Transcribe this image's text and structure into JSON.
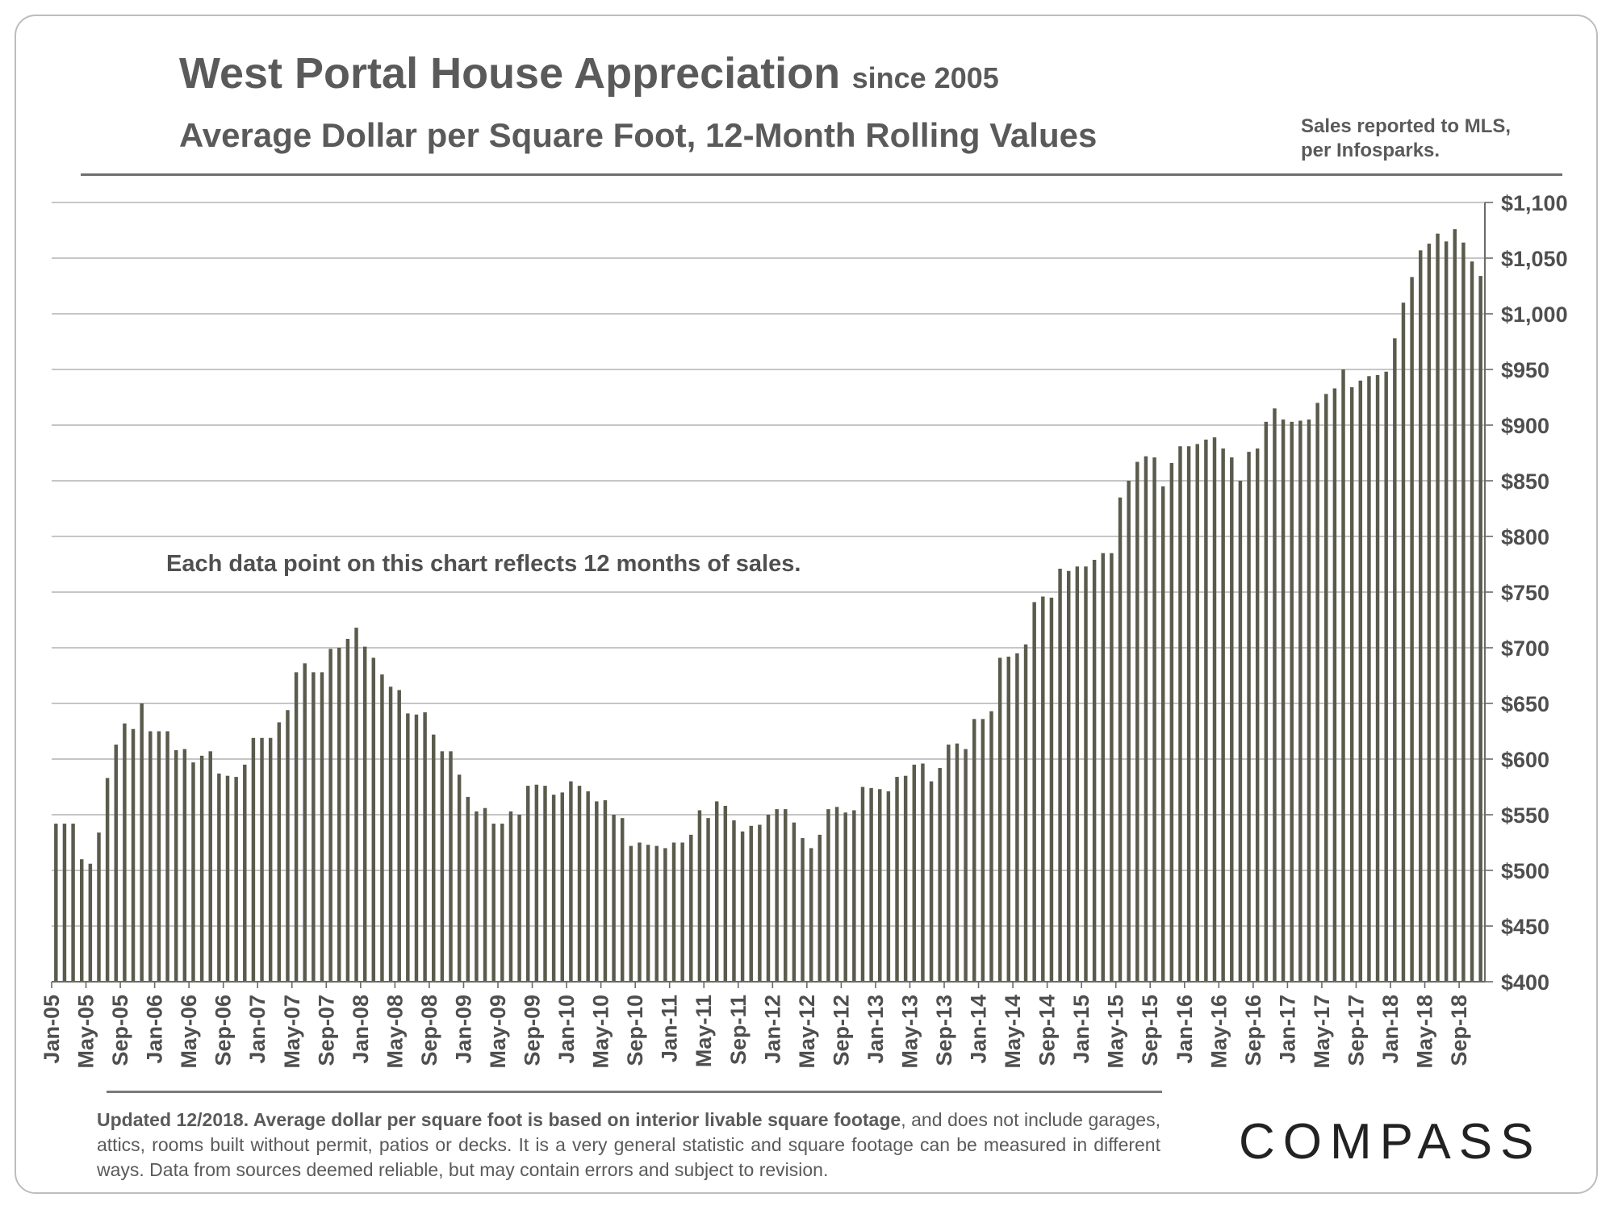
{
  "header": {
    "title": "West Portal House Appreciation",
    "title_suffix": "since 2005",
    "subtitle": "Average Dollar per Square Foot, 12-Month Rolling Values",
    "source_line1": "Sales reported to MLS,",
    "source_line2": "per Infosparks."
  },
  "chart_data": {
    "type": "bar",
    "title": "West Portal House Appreciation since 2005",
    "subtitle": "Average Dollar per Square Foot, 12-Month Rolling Values",
    "annotation": "Each data point on this chart reflects 12 months of sales.",
    "xlabel": "",
    "ylabel": "",
    "ylim": [
      400,
      1100
    ],
    "y_ticks": [
      400,
      450,
      500,
      550,
      600,
      650,
      700,
      750,
      800,
      850,
      900,
      950,
      1000,
      1050,
      1100
    ],
    "y_tick_labels": [
      "$400",
      "$450",
      "$500",
      "$550",
      "$600",
      "$650",
      "$700",
      "$750",
      "$800",
      "$850",
      "$900",
      "$950",
      "$1,000",
      "$1,050",
      "$1,100"
    ],
    "y_axis_side": "right",
    "grid": true,
    "bar_color": "#5b5b4d",
    "x_tick_labels": [
      "Jan-05",
      "May-05",
      "Sep-05",
      "Jan-06",
      "May-06",
      "Sep-06",
      "Jan-07",
      "May-07",
      "Sep-07",
      "Jan-08",
      "May-08",
      "Sep-08",
      "Jan-09",
      "May-09",
      "Sep-09",
      "Jan-10",
      "May-10",
      "Sep-10",
      "Jan-11",
      "May-11",
      "Sep-11",
      "Jan-12",
      "May-12",
      "Sep-12",
      "Jan-13",
      "May-13",
      "Sep-13",
      "Jan-14",
      "May-14",
      "Sep-14",
      "Jan-15",
      "May-15",
      "Sep-15",
      "Jan-16",
      "May-16",
      "Sep-16",
      "Jan-17",
      "May-17",
      "Sep-17",
      "Jan-18",
      "May-18",
      "Sep-18"
    ],
    "x_tick_every": 4,
    "first_month": "Jan-05",
    "last_month": "Nov-18",
    "values": [
      542,
      542,
      542,
      510,
      506,
      534,
      583,
      613,
      632,
      627,
      650,
      625,
      625,
      625,
      608,
      609,
      597,
      603,
      607,
      587,
      585,
      584,
      595,
      619,
      619,
      619,
      633,
      644,
      678,
      686,
      678,
      678,
      699,
      700,
      708,
      718,
      701,
      691,
      676,
      665,
      662,
      641,
      640,
      642,
      622,
      607,
      607,
      586,
      566,
      553,
      556,
      542,
      542,
      553,
      550,
      576,
      577,
      576,
      568,
      570,
      580,
      576,
      571,
      562,
      563,
      550,
      547,
      522,
      525,
      523,
      522,
      520,
      525,
      525,
      532,
      554,
      547,
      562,
      558,
      545,
      535,
      540,
      541,
      550,
      555,
      555,
      543,
      529,
      520,
      532,
      555,
      557,
      552,
      554,
      575,
      574,
      573,
      571,
      584,
      585,
      595,
      596,
      580,
      592,
      613,
      614,
      609,
      636,
      636,
      643,
      691,
      692,
      695,
      703,
      741,
      746,
      745,
      771,
      769,
      773,
      773,
      779,
      785,
      785,
      835,
      850,
      867,
      872,
      871,
      845,
      866,
      881,
      881,
      883,
      887,
      889,
      879,
      871,
      850,
      876,
      879,
      903,
      915,
      905,
      903,
      904,
      905,
      920,
      928,
      933,
      950,
      934,
      940,
      944,
      945,
      948,
      978,
      1010,
      1033,
      1057,
      1063,
      1072,
      1065,
      1076,
      1064,
      1047,
      1034
    ]
  },
  "footer": {
    "bold_text": "Updated 12/2018. Average dollar per square foot is based on interior livable square footage",
    "text": ", and does not include garages, attics, rooms built without permit, patios or decks. It is a very general statistic and square footage can be measured in different ways. Data from sources deemed reliable, but may contain errors and subject to revision.",
    "logo": "COMPASS"
  }
}
